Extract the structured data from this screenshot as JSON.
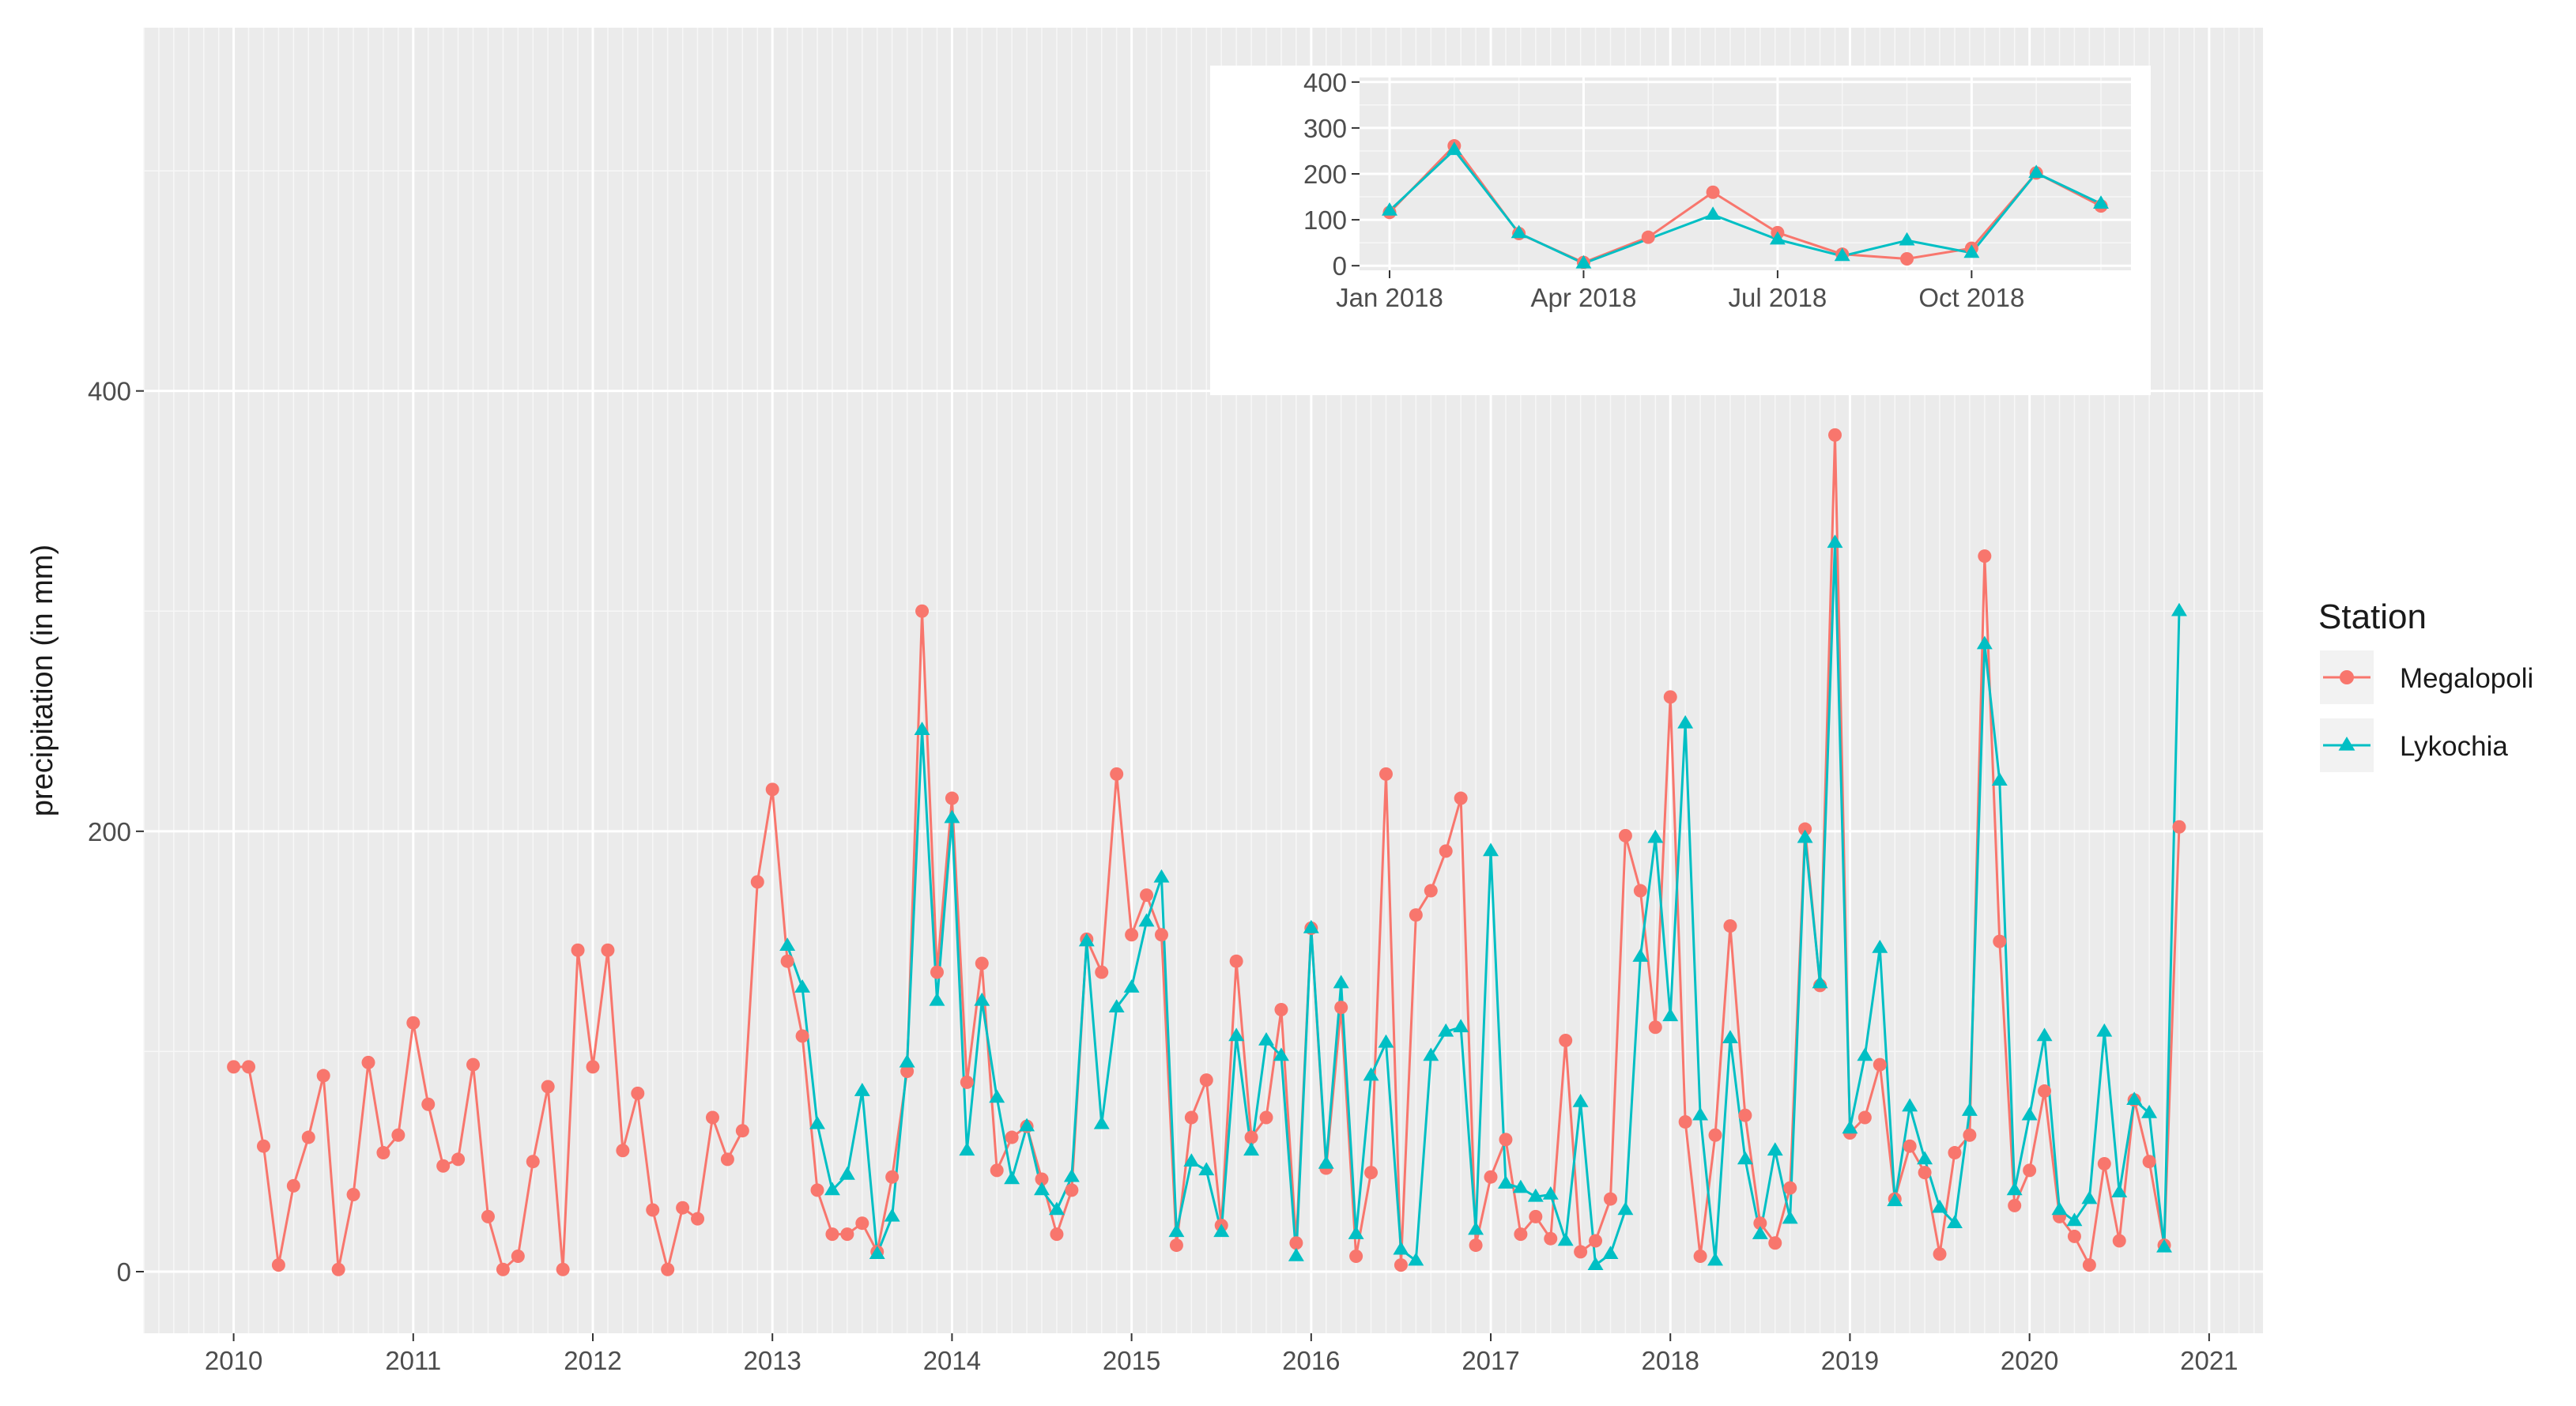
{
  "chart_data": [
    {
      "type": "line",
      "title": "",
      "xlabel": "",
      "ylabel": "precipitation (in mm)",
      "xlim": [
        2009.5,
        2021.3
      ],
      "ylim": [
        -28,
        565
      ],
      "x_ticks": [
        "2010",
        "2011",
        "2012",
        "2013",
        "2014",
        "2015",
        "2016",
        "2017",
        "2018",
        "2019",
        "2020",
        "2021"
      ],
      "y_ticks": [
        "0",
        "200",
        "400"
      ],
      "x_tick_values": [
        2010,
        2011,
        2012,
        2013,
        2014,
        2015,
        2016,
        2017,
        2018,
        2019,
        2020,
        2021
      ],
      "y_tick_values": [
        0,
        200,
        400
      ],
      "legend": {
        "title": "Station",
        "position": "right"
      },
      "series": [
        {
          "name": "Megalopoli",
          "color": "#F8766D",
          "marker": "circle",
          "start": [
            2010,
            1
          ],
          "values": [
            93,
            93,
            57,
            3,
            39,
            61,
            89,
            1,
            35,
            95,
            54,
            62,
            113,
            76,
            48,
            51,
            94,
            25,
            1,
            7,
            50,
            84,
            1,
            146,
            93,
            146,
            55,
            81,
            28,
            1,
            29,
            24,
            70,
            51,
            64,
            177,
            219,
            141,
            107,
            37,
            17,
            17,
            22,
            9,
            43,
            91,
            300,
            136,
            215,
            86,
            140,
            46,
            61,
            66,
            42,
            17,
            37,
            151,
            136,
            226,
            153,
            171,
            153,
            12,
            70,
            87,
            21,
            141,
            61,
            70,
            119,
            13,
            156,
            47,
            120,
            7,
            45,
            226,
            3,
            162,
            173,
            191,
            215,
            12,
            43,
            60,
            17,
            25,
            15,
            105,
            9,
            14,
            33,
            198,
            173,
            111,
            261,
            68,
            7,
            62,
            157,
            71,
            22,
            13,
            38,
            201,
            130,
            380,
            63,
            70,
            94,
            33,
            57,
            45,
            8,
            54,
            62,
            325,
            150,
            30,
            46,
            82,
            25,
            16,
            3,
            49,
            14,
            78,
            50,
            12,
            202
          ]
        },
        {
          "name": "Lykochia",
          "color": "#00BFC4",
          "marker": "triangle",
          "start": [
            2013,
            2
          ],
          "values": [
            148,
            129,
            67,
            37,
            44,
            82,
            8,
            25,
            95,
            246,
            123,
            206,
            55,
            123,
            79,
            42,
            66,
            37,
            28,
            43,
            150,
            67,
            120,
            129,
            159,
            179,
            18,
            50,
            46,
            18,
            107,
            55,
            105,
            98,
            7,
            156,
            49,
            131,
            17,
            89,
            104,
            10,
            5,
            98,
            109,
            111,
            19,
            191,
            40,
            38,
            34,
            35,
            14,
            77,
            3,
            8,
            28,
            143,
            197,
            116,
            249,
            71,
            5,
            106,
            51,
            17,
            55,
            24,
            197,
            131,
            331,
            65,
            98,
            147,
            32,
            75,
            51,
            29,
            22,
            73,
            285,
            223,
            37,
            71,
            107,
            28,
            23,
            33,
            109,
            36,
            78,
            72,
            11,
            300
          ]
        }
      ]
    },
    {
      "type": "line",
      "title": "",
      "xlabel": "",
      "ylabel": "",
      "ylim": [
        -10,
        410
      ],
      "x_ticks": [
        "Jan 2018",
        "Apr 2018",
        "Jul 2018",
        "Oct 2018"
      ],
      "y_ticks": [
        "0",
        "100",
        "200",
        "300",
        "400"
      ],
      "y_tick_values": [
        0,
        100,
        200,
        300,
        400
      ],
      "categories": [
        "Jan 2018",
        "Feb 2018",
        "Mar 2018",
        "Apr 2018",
        "May 2018",
        "Jun 2018",
        "Jul 2018",
        "Aug 2018",
        "Sep 2018",
        "Oct 2018",
        "Nov 2018",
        "Dec 2018"
      ],
      "series": [
        {
          "name": "Megalopoli",
          "color": "#F8766D",
          "marker": "circle",
          "values": [
            116,
            261,
            70,
            7,
            62,
            160,
            72,
            25,
            15,
            38,
            202,
            130
          ]
        },
        {
          "name": "Lykochia",
          "color": "#00BFC4",
          "marker": "triangle",
          "values": [
            120,
            252,
            71,
            5,
            null,
            111,
            57,
            21,
            55,
            28,
            202,
            135
          ]
        }
      ]
    }
  ]
}
